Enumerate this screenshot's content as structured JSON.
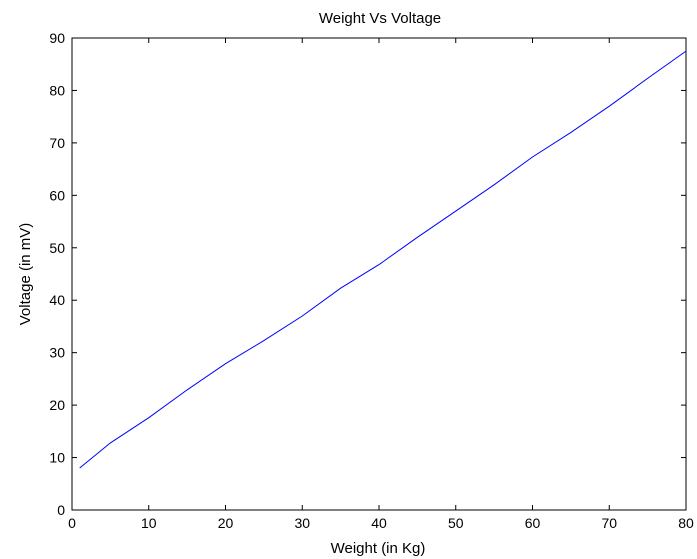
{
  "chart_data": {
    "type": "line",
    "title": "Weight Vs Voltage",
    "xlabel": "Weight (in Kg)",
    "ylabel": "Voltage (in mV)",
    "xlim": [
      0,
      80
    ],
    "ylim": [
      0,
      90
    ],
    "x_ticks": [
      0,
      10,
      20,
      30,
      40,
      50,
      60,
      70,
      80
    ],
    "y_ticks": [
      0,
      10,
      20,
      30,
      40,
      50,
      60,
      70,
      80,
      90
    ],
    "grid": false,
    "line_color": "#0000ff",
    "series": [
      {
        "x": [
          1,
          5,
          10,
          15,
          20,
          25,
          30,
          35,
          40,
          45,
          50,
          55,
          60,
          65,
          70,
          75,
          80
        ],
        "y": [
          8.0,
          12.8,
          17.6,
          22.9,
          27.9,
          32.3,
          37.0,
          42.3,
          46.8,
          52.0,
          57.0,
          62.0,
          67.3,
          72.0,
          77.0,
          82.3,
          87.5
        ]
      }
    ]
  }
}
